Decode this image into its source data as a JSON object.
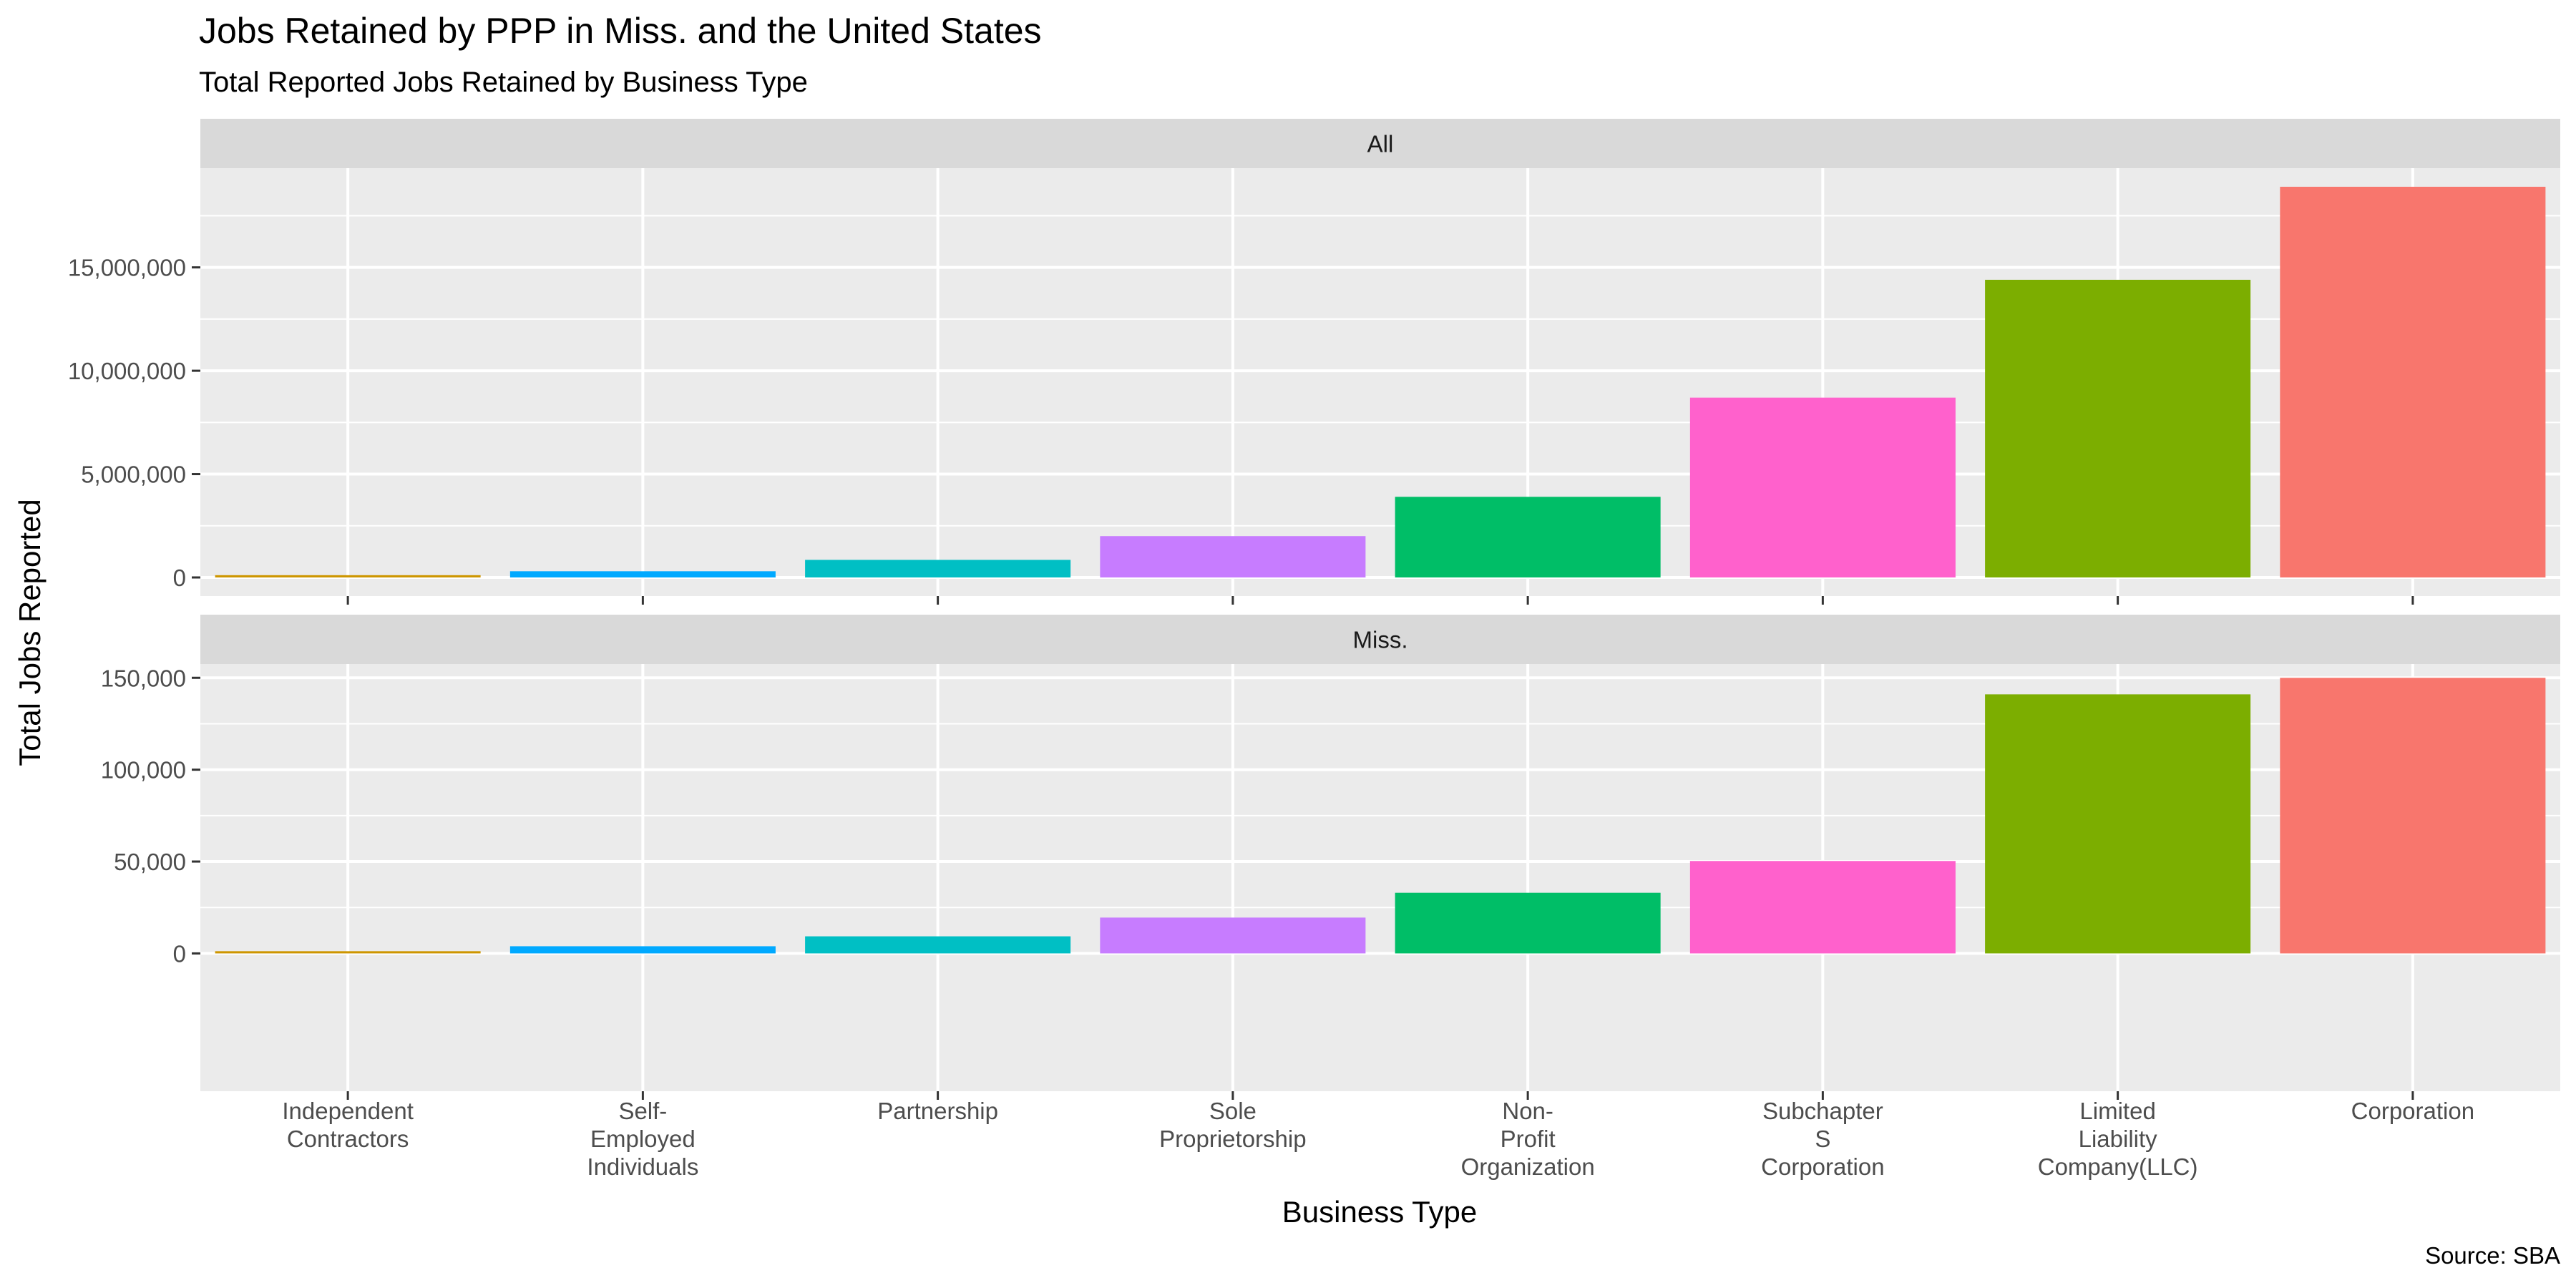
{
  "chart_data": {
    "type": "bar",
    "title": "Jobs Retained by PPP in Miss. and the United States",
    "subtitle": "Total Reported Jobs Retained by Business Type",
    "xlabel": "Business Type",
    "ylabel": "Total Jobs Reported",
    "caption": "Source: SBA",
    "grid": true,
    "legend": "none",
    "categories": [
      [
        "Independent",
        "Contractors"
      ],
      [
        "Self-",
        "Employed",
        "Individuals"
      ],
      [
        "Partnership"
      ],
      [
        "Sole",
        "Proprietorship"
      ],
      [
        "Non-",
        "Profit",
        "Organization"
      ],
      [
        "Subchapter",
        "S",
        "Corporation"
      ],
      [
        "Limited",
        "Liability",
        "Company(LLC)"
      ],
      [
        "Corporation"
      ]
    ],
    "colors": [
      "#CD9600",
      "#00A9FF",
      "#00BFC4",
      "#C77CFF",
      "#00BE67",
      "#FF61CC",
      "#7CAE00",
      "#F8766D"
    ],
    "panels": [
      {
        "strip": "All",
        "ylim": [
          -900000,
          19800000
        ],
        "yticks": [
          0,
          5000000,
          10000000,
          15000000
        ],
        "ytick_labels": [
          "0",
          "5,000,000",
          "10,000,000",
          "15,000,000"
        ],
        "values": [
          110000,
          300000,
          850000,
          2000000,
          3900000,
          8700000,
          14400000,
          18900000
        ]
      },
      {
        "strip": "Miss.",
        "ylim": [
          -75000.0,
          157500
        ],
        "yticks": [
          0,
          50000,
          100000,
          150000
        ],
        "ytick_labels": [
          "0",
          "50,000",
          "100,000",
          "150,000"
        ],
        "values": [
          1200,
          3900,
          9300,
          19500,
          33000,
          50300,
          141000,
          150000
        ]
      }
    ]
  }
}
